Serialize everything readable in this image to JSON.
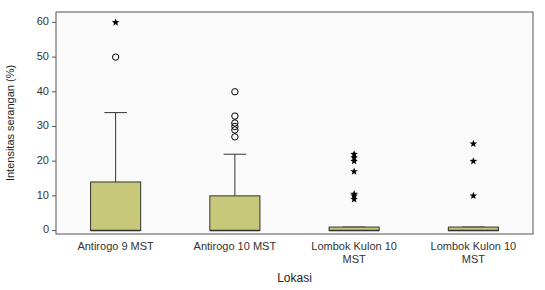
{
  "chart_data": {
    "type": "box",
    "xlabel": "Lokasi",
    "ylabel": "Intensitas serangan (%)",
    "categories": [
      "Antirogo 9 MST",
      "Antirogo 10 MST",
      "Lombok Kulon 10\nMST",
      "Lombok Kulon 10\nMST"
    ],
    "boxes": [
      {
        "q1": 0,
        "median": 0,
        "q3": 14,
        "whisker_low": 0,
        "whisker_high": 34,
        "outliers": [
          50
        ],
        "extreme_outliers": [
          60
        ]
      },
      {
        "q1": 0,
        "median": 0,
        "q3": 10,
        "whisker_low": 0,
        "whisker_high": 22,
        "outliers": [
          27,
          29,
          30,
          31,
          33,
          40
        ],
        "extreme_outliers": []
      },
      {
        "q1": 0,
        "median": 0,
        "q3": 1,
        "whisker_low": 0,
        "whisker_high": 1,
        "outliers": [],
        "extreme_outliers": [
          9,
          10,
          10.5,
          17,
          20,
          21,
          22
        ]
      },
      {
        "q1": 0,
        "median": 0,
        "q3": 1,
        "whisker_low": 0,
        "whisker_high": 1,
        "outliers": [],
        "extreme_outliers": [
          10,
          20,
          25
        ]
      }
    ],
    "color": "#c8c87a",
    "ylim": [
      -1,
      63
    ],
    "yticks": [
      0,
      10,
      20,
      30,
      40,
      50,
      60
    ],
    "grid": false
  }
}
